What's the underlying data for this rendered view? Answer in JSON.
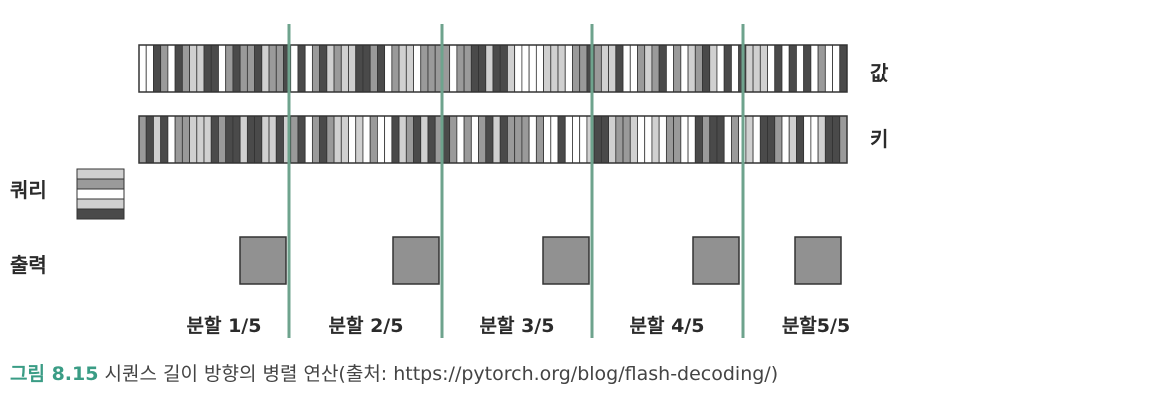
{
  "labels": {
    "values": "값",
    "keys": "키",
    "query": "쿼리",
    "output": "출력"
  },
  "splits": [
    "분할 1/5",
    "분할 2/5",
    "분할 3/5",
    "분할 4/5",
    "분할5/5"
  ],
  "split_count": 5,
  "caption": {
    "figure_number": "그림 8.15",
    "text": " 시퀀스 길이 방향의 병렬 연산(출처: https://pytorch.org/blog/flash-decoding/)"
  },
  "colors": {
    "divider": "#6ea38d",
    "caption_accent": "#3a9c85",
    "cell_dark": "#4a4a4a",
    "cell_mid": "#9a9a9a",
    "cell_light": "#d0d0d0",
    "cell_white": "#ffffff",
    "output_fill": "#919191"
  }
}
